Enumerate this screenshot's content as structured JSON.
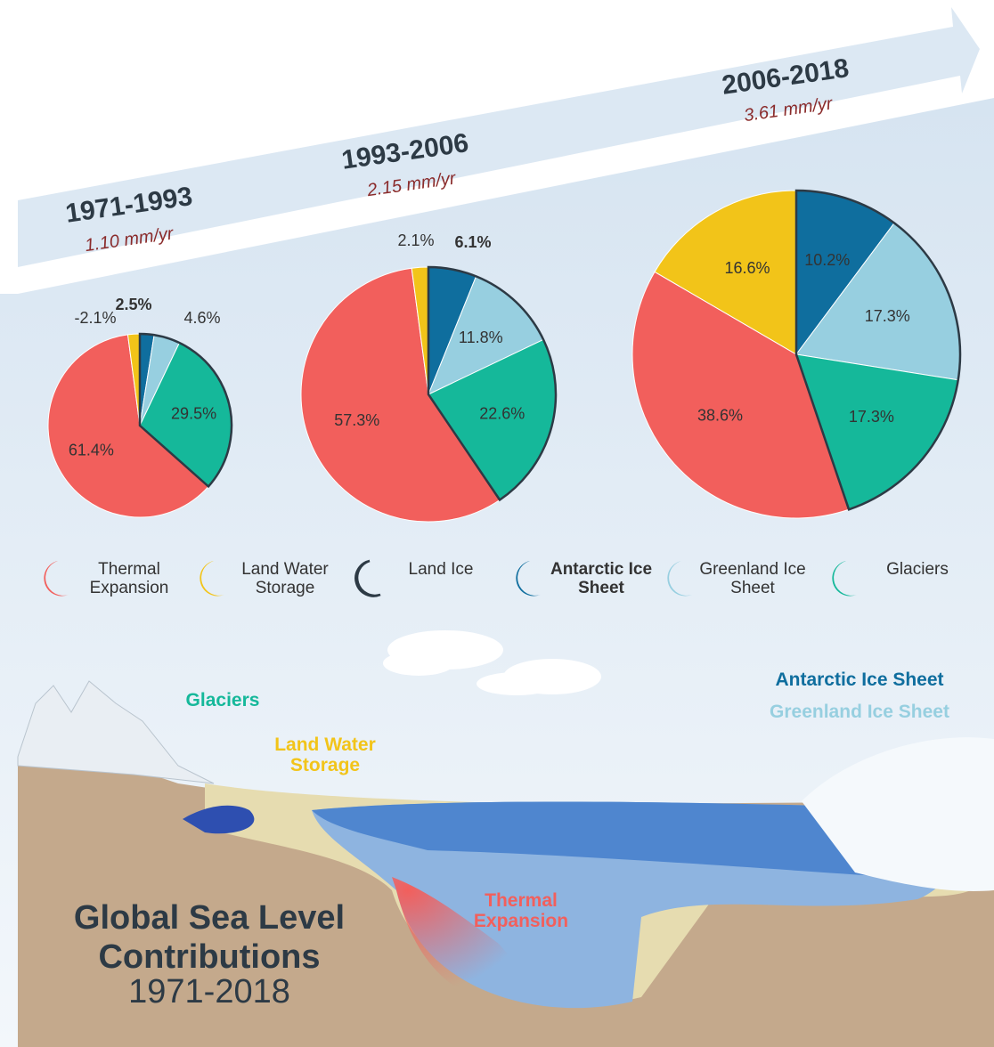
{
  "chart_data": [
    {
      "type": "pie",
      "title": "1971-1993",
      "subtitle": "1.10 mm/yr",
      "values": [
        61.4,
        -2.1,
        2.5,
        4.6,
        29.5
      ],
      "value_labels": [
        "61.4%",
        "-2.1%",
        "2.5%",
        "4.6%",
        "29.5%"
      ],
      "colors": [
        "#f25f5c",
        "#f2c419",
        "#0f6e9e",
        "#97cfe0",
        "#15b89a"
      ]
    },
    {
      "type": "pie",
      "title": "1993-2006",
      "subtitle": "2.15 mm/yr",
      "values": [
        57.3,
        2.1,
        6.1,
        11.8,
        22.6
      ],
      "value_labels": [
        "57.3%",
        "2.1%",
        "6.1%",
        "11.8%",
        "22.6%"
      ],
      "colors": [
        "#f25f5c",
        "#f2c419",
        "#0f6e9e",
        "#97cfe0",
        "#15b89a"
      ]
    },
    {
      "type": "pie",
      "title": "2006-2018",
      "subtitle": "3.61 mm/yr",
      "values": [
        38.6,
        16.6,
        10.2,
        17.3,
        17.3
      ],
      "value_labels": [
        "38.6%",
        "16.6%",
        "10.2%",
        "17.3%",
        "17.3%"
      ],
      "colors": [
        "#f25f5c",
        "#f2c419",
        "#0f6e9e",
        "#97cfe0",
        "#15b89a"
      ]
    }
  ],
  "legend": [
    {
      "label": "Thermal Expansion",
      "color": "#f25f5c"
    },
    {
      "label": "Land Water Storage",
      "color": "#f2c419"
    },
    {
      "label": "Land Ice",
      "color": "#2d3a45"
    },
    {
      "label": "Antarctic Ice Sheet",
      "color": "#0f6e9e"
    },
    {
      "label": "Greenland Ice Sheet",
      "color": "#97cfe0"
    },
    {
      "label": "Glaciers",
      "color": "#15b89a"
    }
  ],
  "scene_labels": [
    {
      "text": "Glaciers",
      "color": "#15b89a"
    },
    {
      "text": "Land Water Storage",
      "color": "#f2c419"
    },
    {
      "text": "Antarctic Ice Sheet",
      "color": "#0f6e9e"
    },
    {
      "text": "Greenland Ice Sheet",
      "color": "#97cfe0"
    },
    {
      "text": "Thermal Expansion",
      "color": "#f25f5c"
    }
  ],
  "title": "Global Sea Level Contributions",
  "subtitle": "1971-2018"
}
